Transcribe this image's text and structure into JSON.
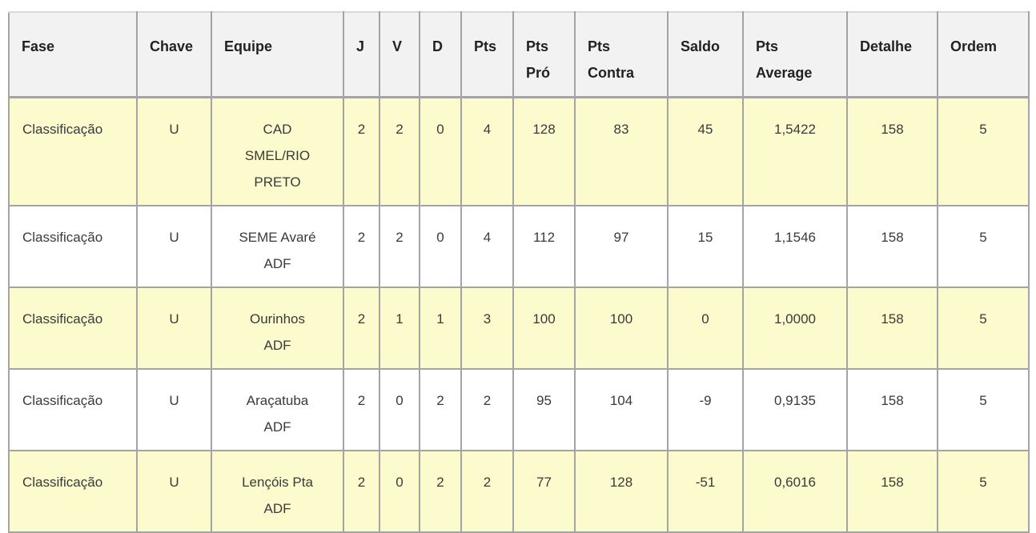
{
  "theme": {
    "row_highlight": "#fbfbcd",
    "header_bg": "#f2f2f2",
    "border": "#a4a4a4"
  },
  "table": {
    "columns": [
      {
        "key": "fase",
        "label": "Fase"
      },
      {
        "key": "chave",
        "label": "Chave"
      },
      {
        "key": "equipe",
        "label": "Equipe"
      },
      {
        "key": "j",
        "label": "J"
      },
      {
        "key": "v",
        "label": "V"
      },
      {
        "key": "d",
        "label": "D"
      },
      {
        "key": "pts",
        "label": "Pts"
      },
      {
        "key": "pts_pro",
        "label": "Pts\nPró"
      },
      {
        "key": "pts_contra",
        "label": "Pts\nContra"
      },
      {
        "key": "saldo",
        "label": "Saldo"
      },
      {
        "key": "pts_average",
        "label": "Pts\nAverage"
      },
      {
        "key": "detalhe",
        "label": "Detalhe"
      },
      {
        "key": "ordem",
        "label": "Ordem"
      }
    ],
    "rows": [
      {
        "fase": "Classificação",
        "chave": "U",
        "equipe": "CAD\nSMEL/RIO\nPRETO",
        "j": "2",
        "v": "2",
        "d": "0",
        "pts": "4",
        "pts_pro": "128",
        "pts_contra": "83",
        "saldo": "45",
        "pts_average": "1,5422",
        "detalhe": "158",
        "ordem": "5",
        "highlighted": true
      },
      {
        "fase": "Classificação",
        "chave": "U",
        "equipe": "SEME Avaré\nADF",
        "j": "2",
        "v": "2",
        "d": "0",
        "pts": "4",
        "pts_pro": "112",
        "pts_contra": "97",
        "saldo": "15",
        "pts_average": "1,1546",
        "detalhe": "158",
        "ordem": "5",
        "highlighted": false
      },
      {
        "fase": "Classificação",
        "chave": "U",
        "equipe": "Ourinhos\nADF",
        "j": "2",
        "v": "1",
        "d": "1",
        "pts": "3",
        "pts_pro": "100",
        "pts_contra": "100",
        "saldo": "0",
        "pts_average": "1,0000",
        "detalhe": "158",
        "ordem": "5",
        "highlighted": true
      },
      {
        "fase": "Classificação",
        "chave": "U",
        "equipe": "Araçatuba\nADF",
        "j": "2",
        "v": "0",
        "d": "2",
        "pts": "2",
        "pts_pro": "95",
        "pts_contra": "104",
        "saldo": "-9",
        "pts_average": "0,9135",
        "detalhe": "158",
        "ordem": "5",
        "highlighted": false
      },
      {
        "fase": "Classificação",
        "chave": "U",
        "equipe": "Lençóis Pta\nADF",
        "j": "2",
        "v": "0",
        "d": "2",
        "pts": "2",
        "pts_pro": "77",
        "pts_contra": "128",
        "saldo": "-51",
        "pts_average": "0,6016",
        "detalhe": "158",
        "ordem": "5",
        "highlighted": true
      }
    ]
  }
}
